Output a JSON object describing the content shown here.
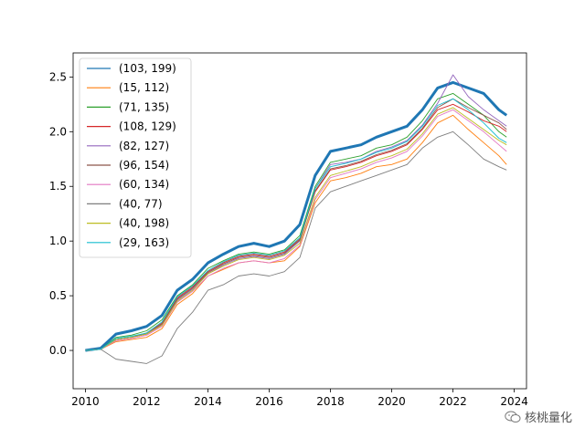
{
  "chart_data": {
    "type": "line",
    "title": "",
    "xlabel": "",
    "ylabel": "",
    "xlim": [
      2009.6,
      2024.4
    ],
    "ylim": [
      -0.35,
      2.72
    ],
    "x_ticks": [
      "2010",
      "2012",
      "2014",
      "2016",
      "2018",
      "2020",
      "2022",
      "2024"
    ],
    "y_ticks": [
      "0.0",
      "0.5",
      "1.0",
      "1.5",
      "2.0",
      "2.5"
    ],
    "grid": false,
    "legend_position": "upper-left",
    "x": [
      2010.0,
      2010.5,
      2011.0,
      2011.5,
      2012.0,
      2012.5,
      2013.0,
      2013.5,
      2014.0,
      2014.5,
      2015.0,
      2015.5,
      2016.0,
      2016.5,
      2017.0,
      2017.5,
      2018.0,
      2018.5,
      2019.0,
      2019.5,
      2020.0,
      2020.5,
      2021.0,
      2021.5,
      2022.0,
      2022.5,
      2023.0,
      2023.5,
      2023.75
    ],
    "series": [
      {
        "name": "(103, 199)",
        "color": "#1f77b4",
        "width": 3.0,
        "values": [
          0.0,
          0.02,
          0.15,
          0.18,
          0.22,
          0.32,
          0.55,
          0.65,
          0.8,
          0.88,
          0.95,
          0.98,
          0.95,
          1.0,
          1.15,
          1.6,
          1.82,
          1.85,
          1.88,
          1.95,
          2.0,
          2.05,
          2.2,
          2.4,
          2.45,
          2.4,
          2.35,
          2.2,
          2.15
        ]
      },
      {
        "name": "(15, 112)",
        "color": "#ff7f0e",
        "width": 0.9,
        "values": [
          0.0,
          0.01,
          0.08,
          0.1,
          0.12,
          0.2,
          0.42,
          0.52,
          0.68,
          0.74,
          0.8,
          0.82,
          0.8,
          0.82,
          0.95,
          1.35,
          1.55,
          1.58,
          1.62,
          1.68,
          1.7,
          1.75,
          1.9,
          2.08,
          2.15,
          2.02,
          1.9,
          1.78,
          1.7
        ]
      },
      {
        "name": "(71, 135)",
        "color": "#2ca02c",
        "width": 0.9,
        "values": [
          0.0,
          0.01,
          0.12,
          0.14,
          0.18,
          0.28,
          0.5,
          0.6,
          0.75,
          0.82,
          0.88,
          0.9,
          0.88,
          0.92,
          1.05,
          1.5,
          1.72,
          1.75,
          1.78,
          1.85,
          1.88,
          1.95,
          2.1,
          2.3,
          2.35,
          2.25,
          2.15,
          2.0,
          1.95
        ]
      },
      {
        "name": "(108, 129)",
        "color": "#d62728",
        "width": 0.9,
        "values": [
          0.0,
          0.01,
          0.1,
          0.12,
          0.16,
          0.25,
          0.48,
          0.58,
          0.72,
          0.8,
          0.86,
          0.88,
          0.86,
          0.9,
          1.02,
          1.45,
          1.65,
          1.68,
          1.72,
          1.78,
          1.82,
          1.88,
          2.02,
          2.2,
          2.25,
          2.18,
          2.1,
          2.05,
          2.0
        ]
      },
      {
        "name": "(82, 127)",
        "color": "#9467bd",
        "width": 0.9,
        "values": [
          0.0,
          0.01,
          0.1,
          0.12,
          0.15,
          0.24,
          0.46,
          0.56,
          0.7,
          0.78,
          0.84,
          0.86,
          0.84,
          0.88,
          1.0,
          1.48,
          1.7,
          1.72,
          1.75,
          1.82,
          1.86,
          1.92,
          2.06,
          2.26,
          2.52,
          2.32,
          2.2,
          2.1,
          2.05
        ]
      },
      {
        "name": "(96, 154)",
        "color": "#8c564b",
        "width": 0.9,
        "values": [
          0.0,
          0.01,
          0.1,
          0.12,
          0.15,
          0.24,
          0.47,
          0.57,
          0.71,
          0.79,
          0.85,
          0.87,
          0.85,
          0.89,
          1.01,
          1.46,
          1.66,
          1.69,
          1.73,
          1.79,
          1.83,
          1.89,
          2.03,
          2.22,
          2.3,
          2.22,
          2.15,
          2.08,
          2.02
        ]
      },
      {
        "name": "(60, 134)",
        "color": "#e377c2",
        "width": 0.9,
        "values": [
          0.0,
          0.01,
          0.09,
          0.11,
          0.14,
          0.22,
          0.44,
          0.54,
          0.68,
          0.75,
          0.8,
          0.82,
          0.8,
          0.84,
          0.96,
          1.38,
          1.58,
          1.62,
          1.66,
          1.72,
          1.76,
          1.82,
          1.96,
          2.14,
          2.2,
          2.1,
          2.0,
          1.88,
          1.82
        ]
      },
      {
        "name": "(40, 77)",
        "color": "#7f7f7f",
        "width": 0.9,
        "values": [
          0.0,
          0.01,
          -0.08,
          -0.1,
          -0.12,
          -0.05,
          0.2,
          0.35,
          0.55,
          0.6,
          0.68,
          0.7,
          0.68,
          0.72,
          0.85,
          1.3,
          1.45,
          1.5,
          1.55,
          1.6,
          1.65,
          1.7,
          1.85,
          1.95,
          2.0,
          1.88,
          1.75,
          1.68,
          1.65
        ]
      },
      {
        "name": "(40, 198)",
        "color": "#bcbd22",
        "width": 0.9,
        "values": [
          0.0,
          0.01,
          0.1,
          0.12,
          0.15,
          0.23,
          0.45,
          0.55,
          0.7,
          0.77,
          0.83,
          0.85,
          0.83,
          0.87,
          0.98,
          1.4,
          1.6,
          1.64,
          1.68,
          1.74,
          1.78,
          1.84,
          1.98,
          2.16,
          2.22,
          2.12,
          2.02,
          1.92,
          1.88
        ]
      },
      {
        "name": "(29, 163)",
        "color": "#17becf",
        "width": 0.9,
        "values": [
          0.0,
          0.01,
          0.11,
          0.13,
          0.16,
          0.26,
          0.49,
          0.59,
          0.73,
          0.81,
          0.87,
          0.89,
          0.87,
          0.91,
          1.03,
          1.48,
          1.68,
          1.71,
          1.75,
          1.81,
          1.85,
          1.91,
          2.05,
          2.24,
          2.3,
          2.2,
          2.08,
          1.94,
          1.9
        ]
      }
    ]
  },
  "watermark": {
    "text": "核桃量化"
  }
}
